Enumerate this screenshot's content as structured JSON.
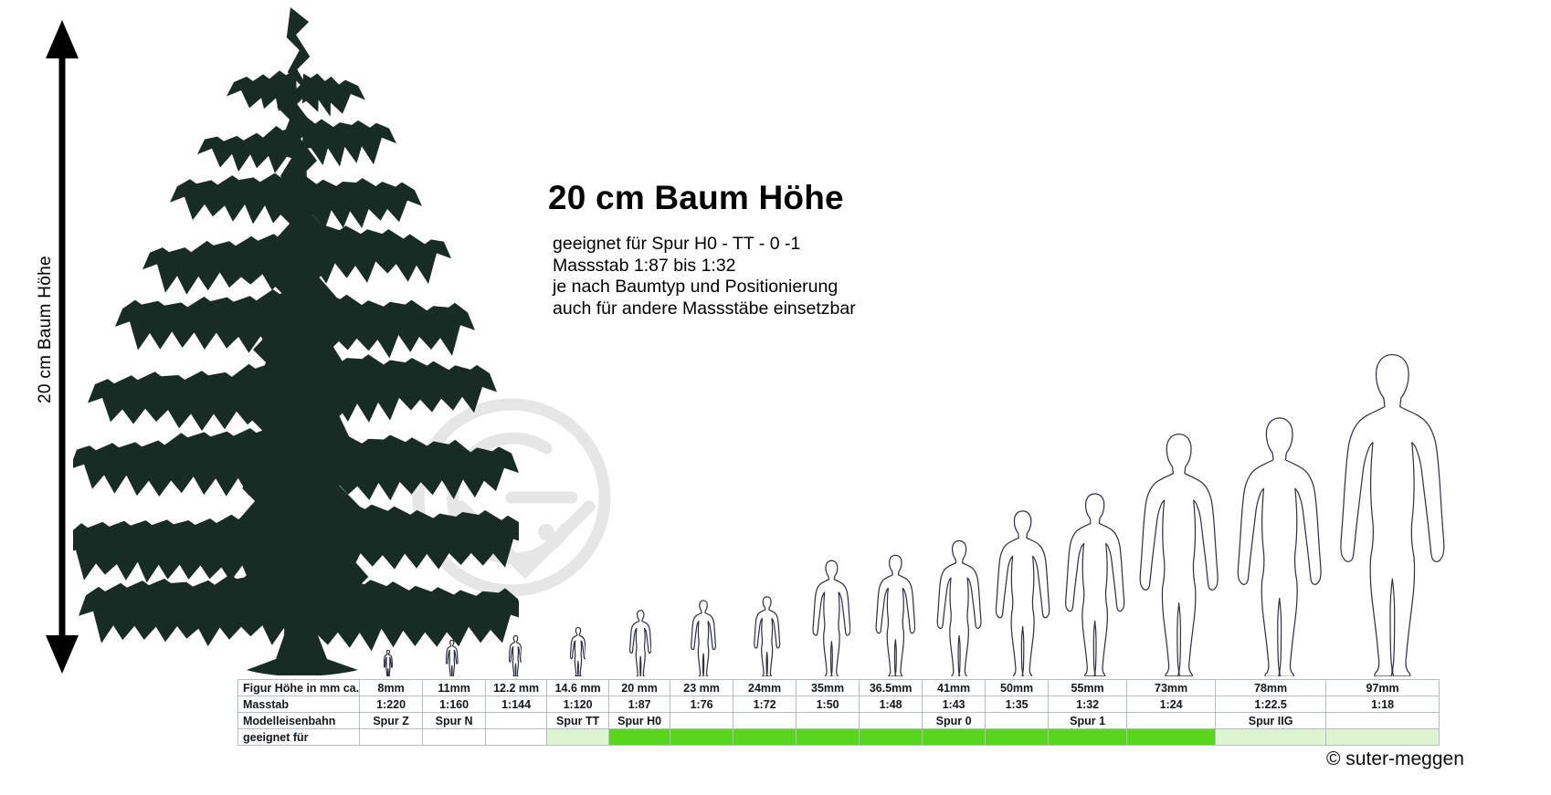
{
  "axis": {
    "label": "20 cm Baum Höhe"
  },
  "info": {
    "title": "20 cm Baum Höhe",
    "lines": [
      "geeignet für Spur H0 - TT - 0 -1",
      "Massstab 1:87 bis 1:32",
      "je nach Baumtyp und Positionierung",
      "auch für andere Massstäbe einsetzbar"
    ]
  },
  "footer": {
    "copyright": "© suter-meggen"
  },
  "colors": {
    "tree": "#182b25",
    "figure_outline": "#2e2e45",
    "suitable_strong": "#58d61e",
    "suitable_light": "#ddf4d0",
    "table_border": "#b4bdc6"
  },
  "table": {
    "row_labels": [
      "Figur Höhe in mm ca.",
      "Masstab",
      "Modelleisenbahn",
      "geeignet für"
    ],
    "columns": [
      {
        "figur_hoehe": "8mm",
        "mm": 8,
        "masstab": "1:220",
        "modelleisenbahn": "Spur Z",
        "geeignet": "none"
      },
      {
        "figur_hoehe": "11mm",
        "mm": 11,
        "masstab": "1:160",
        "modelleisenbahn": "Spur N",
        "geeignet": "none"
      },
      {
        "figur_hoehe": "12.2 mm",
        "mm": 12.2,
        "masstab": "1:144",
        "modelleisenbahn": "",
        "geeignet": "none"
      },
      {
        "figur_hoehe": "14.6 mm",
        "mm": 14.6,
        "masstab": "1:120",
        "modelleisenbahn": "Spur TT",
        "geeignet": "light"
      },
      {
        "figur_hoehe": "20 mm",
        "mm": 20,
        "masstab": "1:87",
        "modelleisenbahn": "Spur H0",
        "geeignet": "strong"
      },
      {
        "figur_hoehe": "23 mm",
        "mm": 23,
        "masstab": "1:76",
        "modelleisenbahn": "",
        "geeignet": "strong"
      },
      {
        "figur_hoehe": "24mm",
        "mm": 24,
        "masstab": "1:72",
        "modelleisenbahn": "",
        "geeignet": "strong"
      },
      {
        "figur_hoehe": "35mm",
        "mm": 35,
        "masstab": "1:50",
        "modelleisenbahn": "",
        "geeignet": "strong"
      },
      {
        "figur_hoehe": "36.5mm",
        "mm": 36.5,
        "masstab": "1:48",
        "modelleisenbahn": "",
        "geeignet": "strong"
      },
      {
        "figur_hoehe": "41mm",
        "mm": 41,
        "masstab": "1:43",
        "modelleisenbahn": "Spur 0",
        "geeignet": "strong"
      },
      {
        "figur_hoehe": "50mm",
        "mm": 50,
        "masstab": "1:35",
        "modelleisenbahn": "",
        "geeignet": "strong"
      },
      {
        "figur_hoehe": "55mm",
        "mm": 55,
        "masstab": "1:32",
        "modelleisenbahn": "Spur 1",
        "geeignet": "strong"
      },
      {
        "figur_hoehe": "73mm",
        "mm": 73,
        "masstab": "1:24",
        "modelleisenbahn": "",
        "geeignet": "strong"
      },
      {
        "figur_hoehe": "78mm",
        "mm": 78,
        "masstab": "1:22.5",
        "modelleisenbahn": "Spur IIG",
        "geeignet": "light"
      },
      {
        "figur_hoehe": "97mm",
        "mm": 97,
        "masstab": "1:18",
        "modelleisenbahn": "",
        "geeignet": "light"
      }
    ]
  }
}
